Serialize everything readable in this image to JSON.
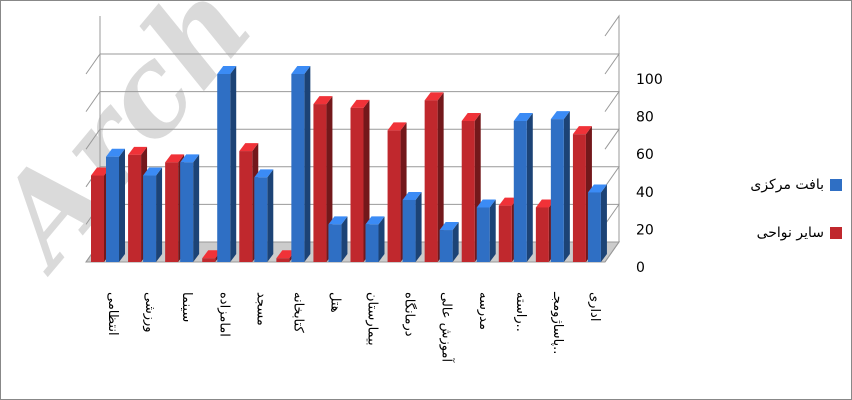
{
  "chart_data": {
    "type": "bar3d",
    "watermark": "Arch",
    "categories": [
      "انتظامی",
      "ورزشی",
      "سینما",
      "امامزاده",
      "مسجد",
      "کتابخانه",
      "هتل",
      "بیمارستان",
      "درمانگاه",
      "آموزش عالی",
      "مدرسه",
      "راسته..",
      "پاساژومجـ..",
      "اداری"
    ],
    "series": [
      {
        "name": "سایر نواحی",
        "color": "#c0282d",
        "values": [
          46,
          57,
          53,
          2,
          59,
          2,
          84,
          82,
          70,
          86,
          75,
          30,
          29,
          68
        ]
      },
      {
        "name": "بافت مرکزی",
        "color": "#2f6fc4",
        "values": [
          56,
          46,
          53,
          100,
          45,
          100,
          20,
          20,
          33,
          17,
          29,
          75,
          76,
          37
        ]
      }
    ],
    "ylim": [
      0,
      100
    ],
    "yticks": [
      0,
      20,
      40,
      60,
      80,
      100
    ],
    "grid": true,
    "legend": "right"
  }
}
